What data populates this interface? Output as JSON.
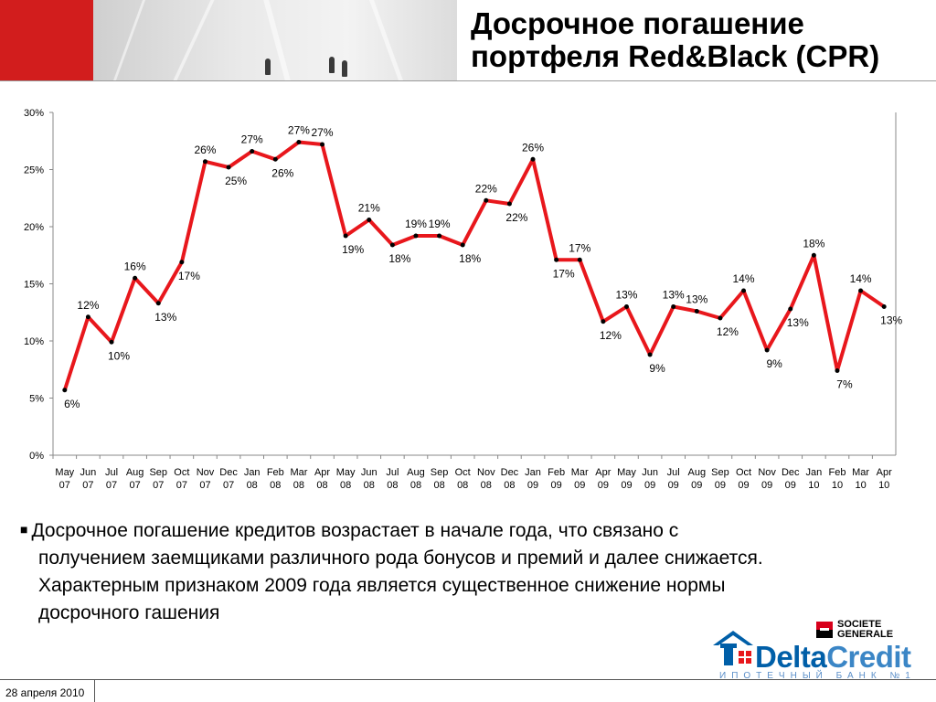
{
  "title": {
    "line1": "Досрочное погашение",
    "line2": "портфеля Red&Black (CPR)"
  },
  "chart_data": {
    "type": "line",
    "ylim": [
      0,
      30
    ],
    "yticks": [
      "0%",
      "5%",
      "10%",
      "15%",
      "20%",
      "25%",
      "30%"
    ],
    "ytick_values": [
      0,
      5,
      10,
      15,
      20,
      25,
      30
    ],
    "grid": false,
    "series_color": "#e8171c",
    "categories": [
      [
        "May",
        "07"
      ],
      [
        "Jun",
        "07"
      ],
      [
        "Jul",
        "07"
      ],
      [
        "Aug",
        "07"
      ],
      [
        "Sep",
        "07"
      ],
      [
        "Oct",
        "07"
      ],
      [
        "Nov",
        "07"
      ],
      [
        "Dec",
        "07"
      ],
      [
        "Jan",
        "08"
      ],
      [
        "Feb",
        "08"
      ],
      [
        "Mar",
        "08"
      ],
      [
        "Apr",
        "08"
      ],
      [
        "May",
        "08"
      ],
      [
        "Jun",
        "08"
      ],
      [
        "Jul",
        "08"
      ],
      [
        "Aug",
        "08"
      ],
      [
        "Sep",
        "08"
      ],
      [
        "Oct",
        "08"
      ],
      [
        "Nov",
        "08"
      ],
      [
        "Dec",
        "08"
      ],
      [
        "Jan",
        "09"
      ],
      [
        "Feb",
        "09"
      ],
      [
        "Mar",
        "09"
      ],
      [
        "Apr",
        "09"
      ],
      [
        "May",
        "09"
      ],
      [
        "Jun",
        "09"
      ],
      [
        "Jul",
        "09"
      ],
      [
        "Aug",
        "09"
      ],
      [
        "Sep",
        "09"
      ],
      [
        "Oct",
        "09"
      ],
      [
        "Nov",
        "09"
      ],
      [
        "Dec",
        "09"
      ],
      [
        "Jan",
        "10"
      ],
      [
        "Feb",
        "10"
      ],
      [
        "Mar",
        "10"
      ],
      [
        "Apr",
        "10"
      ]
    ],
    "values": [
      5.7,
      12.1,
      9.9,
      15.5,
      13.3,
      16.9,
      25.7,
      25.2,
      26.6,
      25.9,
      27.4,
      27.2,
      19.2,
      20.6,
      18.4,
      19.2,
      19.2,
      18.4,
      22.3,
      22.0,
      25.9,
      17.1,
      17.1,
      11.7,
      13.0,
      8.8,
      13.0,
      12.6,
      12.0,
      14.4,
      9.2,
      12.8,
      17.5,
      7.4,
      14.4,
      13.0
    ],
    "labels": [
      "6%",
      "12%",
      "10%",
      "16%",
      "13%",
      "17%",
      "26%",
      "25%",
      "27%",
      "26%",
      "27%",
      "27%",
      "19%",
      "21%",
      "18%",
      "19%",
      "19%",
      "18%",
      "22%",
      "22%",
      "26%",
      "17%",
      "17%",
      "12%",
      "13%",
      "9%",
      "13%",
      "13%",
      "12%",
      "14%",
      "9%",
      "13%",
      "18%",
      "7%",
      "14%",
      "13%"
    ],
    "label_pos": [
      "b",
      "a",
      "b",
      "a",
      "b",
      "b",
      "a",
      "b",
      "a",
      "b",
      "a",
      "a",
      "b",
      "a",
      "b",
      "a",
      "a",
      "b",
      "a",
      "b",
      "a",
      "b",
      "a",
      "b",
      "a",
      "b",
      "a",
      "a",
      "b",
      "a",
      "b",
      "b",
      "a",
      "b",
      "a",
      "b"
    ]
  },
  "bullet": {
    "line1": "Досрочное погашение кредитов возрастает в начале года, что связано с",
    "line2": "получением заемщиками различного рода бонусов и премий и далее снижается.",
    "line3": "Характерным признаком 2009 года является существенное снижение нормы",
    "line4": "досрочного гашения"
  },
  "logos": {
    "sg_line1": "SOCIETE",
    "sg_line2": "GENERALE",
    "dc_delta": "Delta",
    "dc_credit": "Credit",
    "dc_sub": "ИПОТЕЧНЫЙ БАНК №1"
  },
  "footer": {
    "date": "28 апреля 2010"
  },
  "colors": {
    "brand_red": "#d21d1d",
    "line_red": "#e8171c",
    "delta_blue": "#005fa8"
  }
}
